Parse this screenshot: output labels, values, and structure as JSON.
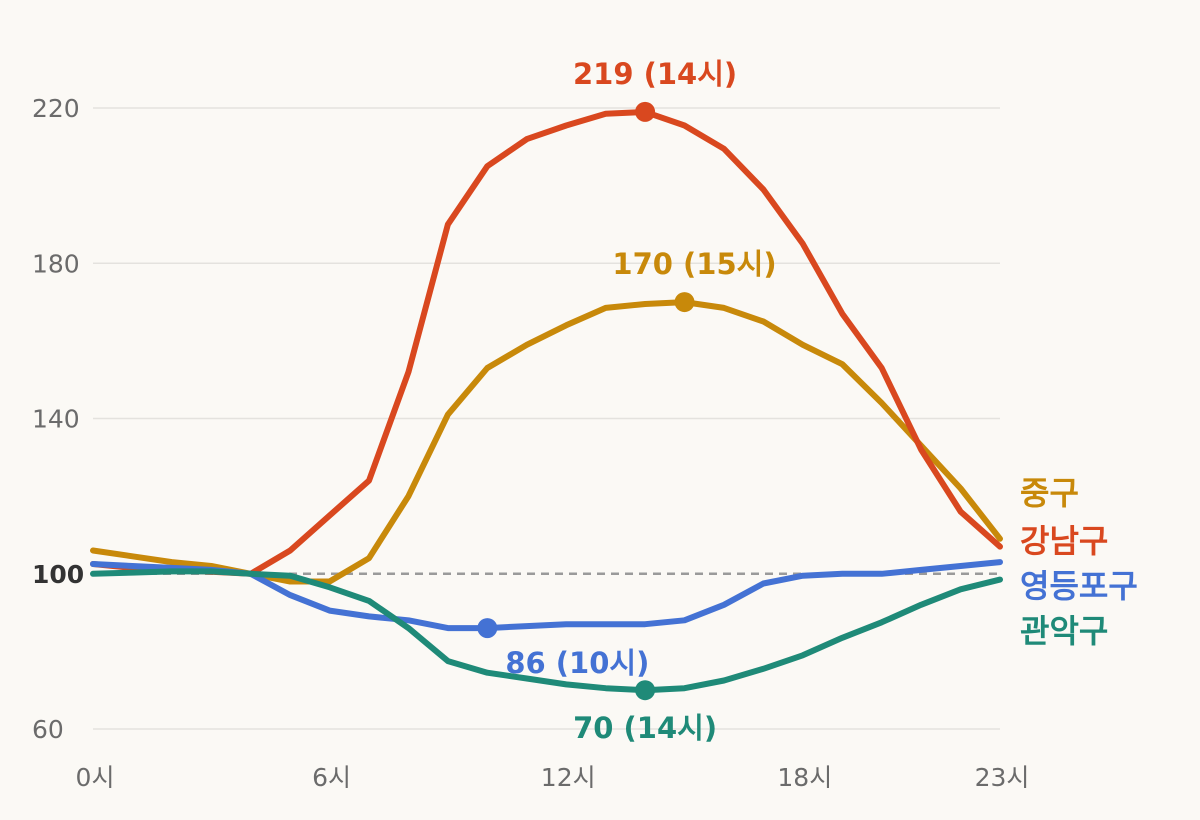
{
  "chart_data": {
    "type": "line",
    "title": "",
    "xlabel": "",
    "ylabel": "",
    "x": [
      0,
      1,
      2,
      3,
      4,
      5,
      6,
      7,
      8,
      9,
      10,
      11,
      12,
      13,
      14,
      15,
      16,
      17,
      18,
      19,
      20,
      21,
      22,
      23
    ],
    "x_tick_labels": [
      {
        "x": 0,
        "label": "0시"
      },
      {
        "x": 6,
        "label": "6시"
      },
      {
        "x": 12,
        "label": "12시"
      },
      {
        "x": 18,
        "label": "18시"
      },
      {
        "x": 23,
        "label": "23시"
      }
    ],
    "y_ticks": [
      {
        "value": 60,
        "label": "60",
        "bold": false
      },
      {
        "value": 100,
        "label": "100",
        "bold": true
      },
      {
        "value": 140,
        "label": "140",
        "bold": false
      },
      {
        "value": 180,
        "label": "180",
        "bold": false
      },
      {
        "value": 220,
        "label": "220",
        "bold": false
      }
    ],
    "ylim": [
      60,
      220
    ],
    "xlim": [
      0,
      23
    ],
    "baseline": 100,
    "grid": true,
    "legend_placement": "right",
    "series": [
      {
        "name": "중구",
        "color": "#c8890a",
        "values": [
          106,
          104.5,
          103,
          102,
          100,
          98,
          98,
          104,
          120,
          141,
          153,
          159,
          164,
          168.5,
          169.5,
          170,
          168.5,
          165,
          159,
          154,
          144,
          133,
          122,
          109
        ],
        "peak": {
          "x": 15,
          "y": 170,
          "label": "170 (15시)"
        }
      },
      {
        "name": "강남구",
        "color": "#d9481f",
        "values": [
          102.5,
          101.5,
          101,
          100.5,
          100,
          106,
          115,
          124,
          152,
          190,
          205,
          212,
          215.5,
          218.5,
          219,
          215.5,
          209.5,
          199,
          185,
          167,
          153,
          132,
          116,
          107
        ],
        "peak": {
          "x": 14,
          "y": 219,
          "label": "219 (14시)"
        }
      },
      {
        "name": "영등포구",
        "color": "#4472d4",
        "values": [
          102.5,
          102,
          101.5,
          101,
          100,
          94.5,
          90.5,
          89,
          88,
          86,
          86,
          86.5,
          87,
          87,
          87,
          88,
          92,
          97.5,
          99.5,
          100,
          100,
          101,
          102,
          103
        ],
        "peak": {
          "x": 10,
          "y": 86,
          "label": "86 (10시)"
        }
      },
      {
        "name": "관악구",
        "color": "#1f8a78",
        "values": [
          100,
          100.3,
          100.6,
          100.6,
          100,
          99.5,
          96.5,
          93,
          86,
          77.5,
          74.5,
          73,
          71.5,
          70.5,
          70,
          70.5,
          72.5,
          75.5,
          79,
          83.5,
          87.5,
          92,
          96,
          98.5
        ],
        "peak": {
          "x": 14,
          "y": 70,
          "label": "70 (14시)"
        }
      }
    ]
  }
}
